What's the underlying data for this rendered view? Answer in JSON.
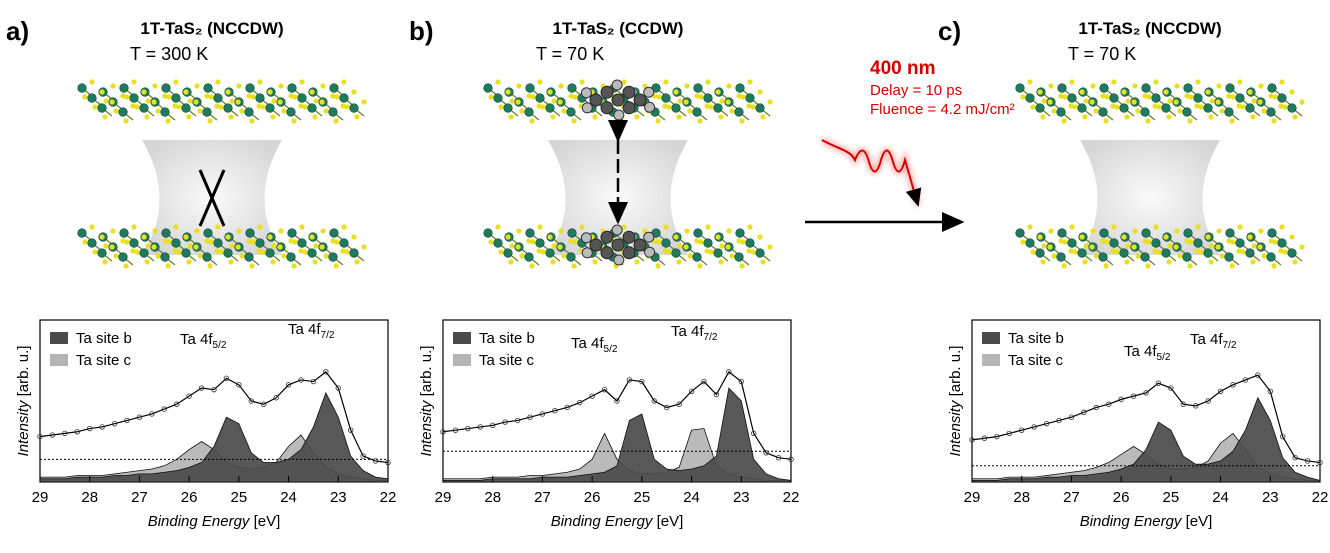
{
  "pump": {
    "wavelength": "400 nm",
    "delay": "Delay = 10 ps",
    "fluence": "Fluence = 4.2 mJ/cm²"
  },
  "chart_data": [
    {
      "type": "line",
      "panel_label": "a)",
      "title": "1T-TaS₂ (NCCDW)",
      "subtitle": "T = 300 K",
      "xlabel": {
        "italic": "Binding Energy",
        "rest": " [eV]"
      },
      "ylabel": {
        "italic": "Intensity",
        "rest": " [arb. u.]"
      },
      "peak_labels": [
        {
          "base": "Ta 4f",
          "sub": "5/2"
        },
        {
          "base": "Ta 4f",
          "sub": "7/2"
        }
      ],
      "x": [
        29,
        28.75,
        28.5,
        28.25,
        28,
        27.75,
        27.5,
        27.25,
        27,
        26.75,
        26.5,
        26.25,
        26,
        25.75,
        25.5,
        25.25,
        25,
        24.75,
        24.5,
        24.25,
        24,
        23.75,
        23.5,
        23.25,
        23,
        22.75,
        22.5,
        22.25,
        22
      ],
      "values": [
        28,
        29,
        30,
        31,
        33,
        34,
        36,
        38,
        40,
        42,
        45,
        48,
        53,
        58,
        57,
        64,
        60,
        50,
        48,
        52,
        60,
        63,
        62,
        68,
        58,
        32,
        16,
        13,
        12
      ],
      "series": [
        {
          "name": "Ta site b",
          "color": "#4a4a4a",
          "values": [
            2,
            2,
            2,
            3,
            3,
            3,
            4,
            4,
            5,
            5,
            6,
            7,
            9,
            12,
            22,
            40,
            36,
            18,
            12,
            12,
            14,
            20,
            34,
            55,
            40,
            16,
            7,
            3,
            2
          ]
        },
        {
          "name": "Ta site c",
          "color": "#b4b4b4",
          "values": [
            3,
            3,
            3,
            4,
            4,
            4,
            5,
            6,
            7,
            8,
            10,
            14,
            20,
            25,
            20,
            12,
            9,
            8,
            9,
            12,
            22,
            29,
            18,
            9,
            5,
            3,
            2,
            1,
            1
          ]
        }
      ],
      "xlim": [
        29,
        22
      ],
      "xticks": [
        29,
        28,
        27,
        26,
        25,
        24,
        23,
        22
      ],
      "ylim": [
        0,
        100
      ],
      "hline": 14
    },
    {
      "type": "line",
      "panel_label": "b)",
      "title": "1T-TaS₂ (CCDW)",
      "subtitle": "T = 70 K",
      "xlabel": {
        "italic": "Binding Energy",
        "rest": " [eV]"
      },
      "ylabel": {
        "italic": "Intensity",
        "rest": " [arb. u.]"
      },
      "peak_labels": [
        {
          "base": "Ta 4f",
          "sub": "5/2"
        },
        {
          "base": "Ta 4f",
          "sub": "7/2"
        }
      ],
      "x": [
        29,
        28.75,
        28.5,
        28.25,
        28,
        27.75,
        27.5,
        27.25,
        27,
        26.75,
        26.5,
        26.25,
        26,
        25.75,
        25.5,
        25.25,
        25,
        24.75,
        24.5,
        24.25,
        24,
        23.75,
        23.5,
        23.25,
        23,
        22.75,
        22.5,
        22.25,
        22
      ],
      "values": [
        31,
        32,
        33,
        34,
        35,
        37,
        38,
        40,
        42,
        44,
        46,
        49,
        53,
        57,
        50,
        63,
        62,
        50,
        46,
        48,
        56,
        62,
        54,
        68,
        62,
        30,
        18,
        15,
        14
      ],
      "series": [
        {
          "name": "Ta site b",
          "color": "#4a4a4a",
          "values": [
            1,
            1,
            1,
            1,
            2,
            2,
            2,
            2,
            3,
            3,
            3,
            4,
            5,
            6,
            10,
            38,
            42,
            14,
            8,
            7,
            8,
            10,
            16,
            58,
            50,
            14,
            5,
            2,
            1
          ]
        },
        {
          "name": "Ta site c",
          "color": "#b4b4b4",
          "values": [
            2,
            2,
            2,
            2,
            3,
            3,
            3,
            4,
            4,
            5,
            6,
            8,
            14,
            30,
            14,
            7,
            5,
            5,
            6,
            9,
            32,
            33,
            10,
            5,
            3,
            2,
            1,
            1,
            1
          ]
        }
      ],
      "xlim": [
        29,
        22
      ],
      "xticks": [
        29,
        28,
        27,
        26,
        25,
        24,
        23,
        22
      ],
      "ylim": [
        0,
        100
      ],
      "hline": 19
    },
    {
      "type": "line",
      "panel_label": "c)",
      "title": "1T-TaS₂ (NCCDW)",
      "subtitle": "T = 70 K",
      "xlabel": {
        "italic": "Binding Energy",
        "rest": " [eV]"
      },
      "ylabel": {
        "italic": "Intensity",
        "rest": " [arb. u.]"
      },
      "peak_labels": [
        {
          "base": "Ta 4f",
          "sub": "5/2"
        },
        {
          "base": "Ta 4f",
          "sub": "7/2"
        }
      ],
      "x": [
        29,
        28.75,
        28.5,
        28.25,
        28,
        27.75,
        27.5,
        27.25,
        27,
        26.75,
        26.5,
        26.25,
        26,
        25.75,
        25.5,
        25.25,
        25,
        24.75,
        24.5,
        24.25,
        24,
        23.75,
        23.5,
        23.25,
        23,
        22.75,
        22.5,
        22.25,
        22
      ],
      "values": [
        26,
        27,
        28,
        30,
        32,
        34,
        36,
        38,
        40,
        43,
        46,
        48,
        51,
        53,
        55,
        61,
        58,
        48,
        47,
        50,
        56,
        60,
        63,
        66,
        56,
        28,
        15,
        13,
        12
      ],
      "series": [
        {
          "name": "Ta site b",
          "color": "#4a4a4a",
          "values": [
            1,
            1,
            1,
            2,
            2,
            2,
            3,
            3,
            4,
            4,
            5,
            6,
            8,
            11,
            20,
            37,
            32,
            16,
            11,
            11,
            13,
            19,
            32,
            52,
            38,
            15,
            6,
            3,
            1
          ]
        },
        {
          "name": "Ta site c",
          "color": "#b4b4b4",
          "values": [
            2,
            2,
            2,
            3,
            3,
            3,
            4,
            5,
            6,
            7,
            9,
            12,
            17,
            22,
            17,
            11,
            8,
            8,
            9,
            13,
            24,
            30,
            20,
            9,
            5,
            3,
            2,
            1,
            1
          ]
        }
      ],
      "xlim": [
        29,
        22
      ],
      "xticks": [
        29,
        28,
        27,
        26,
        25,
        24,
        23,
        22
      ],
      "ylim": [
        0,
        100
      ],
      "hline": 10
    }
  ]
}
